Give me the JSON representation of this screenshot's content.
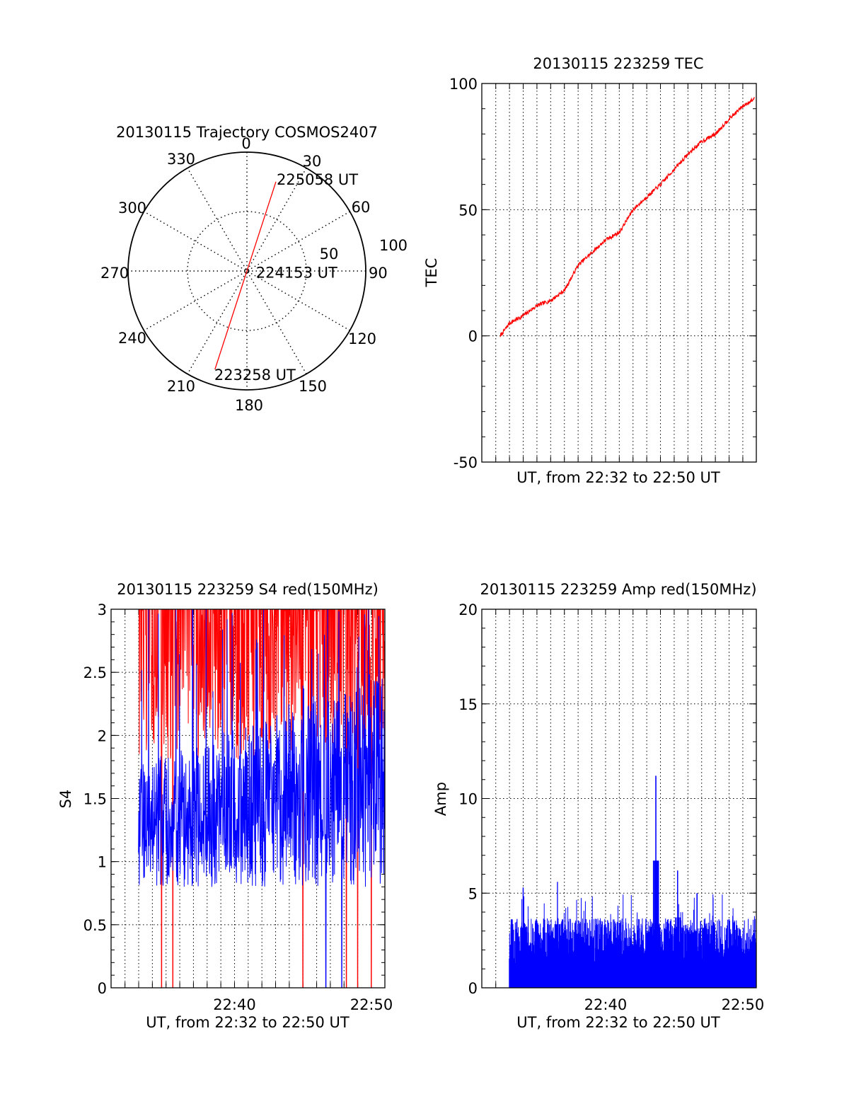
{
  "chart_data": [
    {
      "type": "polar",
      "title": "20130115 Trajectory COSMOS2407",
      "angle_labels": [
        "0",
        "30",
        "60",
        "90",
        "120",
        "150",
        "180",
        "210",
        "240",
        "270",
        "300",
        "330"
      ],
      "radius_labels": [
        "50",
        "100"
      ],
      "rlim": [
        0,
        100
      ],
      "series": [
        {
          "color": "#ff0000",
          "points": [
            {
              "az": 18,
              "r": 79
            },
            {
              "az": 18,
              "r": 0
            },
            {
              "az": 198,
              "r": 87
            }
          ]
        }
      ],
      "annotations": [
        {
          "text": "225058 UT",
          "az": 18,
          "r": 79
        },
        {
          "text": "224153 UT",
          "az": 70,
          "r": 10
        },
        {
          "text": "223258 UT",
          "az": 198,
          "r": 87
        }
      ]
    },
    {
      "type": "line",
      "title": "20130115 223259 TEC",
      "xlabel": "UT, from 22:32 to 22:50 UT",
      "ylabel": "TEC",
      "xlim": [
        "22:30:59",
        "22:50:59"
      ],
      "ylim": [
        -50,
        100
      ],
      "yticks": [
        "-50",
        "0",
        "50",
        "100"
      ],
      "grid": true,
      "series": [
        {
          "color": "#ff0000",
          "x": [
            "22:32:20",
            "22:33:00",
            "22:34:00",
            "22:35:00",
            "22:36:00",
            "22:37:00",
            "22:38:00",
            "22:39:00",
            "22:40:00",
            "22:41:00",
            "22:42:00",
            "22:43:00",
            "22:44:00",
            "22:45:00",
            "22:46:00",
            "22:47:00",
            "22:48:00",
            "22:49:00",
            "22:50:00",
            "22:50:50"
          ],
          "y": [
            0,
            5,
            8,
            12,
            14,
            18,
            28,
            33,
            38,
            41,
            50,
            55,
            60,
            66,
            72,
            77,
            80,
            86,
            91,
            94
          ]
        }
      ]
    },
    {
      "type": "line",
      "title": "20130115 223259 S4 red(150MHz)",
      "xlabel": "UT, from 22:32 to 22:50 UT",
      "ylabel": "S4",
      "xlim": [
        "22:30:59",
        "22:50:59"
      ],
      "ylim": [
        0,
        3
      ],
      "xticks": [
        "22:40",
        "22:50"
      ],
      "yticks": [
        "0",
        "0.5",
        "1",
        "1.5",
        "2",
        "2.5",
        "3"
      ],
      "grid": true,
      "series": [
        {
          "name": "",
          "color": "#ff0000",
          "range": [
            1.8,
            3.0
          ],
          "dropouts": [
            "22:34:40",
            "22:35:30",
            "22:45:00",
            "22:48:10",
            "22:49:00",
            "22:50:00"
          ]
        },
        {
          "name": "",
          "color": "#0000ff",
          "range": [
            0.8,
            2.2
          ],
          "dropouts": [
            "22:46:40",
            "22:47:50"
          ]
        }
      ]
    },
    {
      "type": "line",
      "title": "20130115 223259 Amp red(150MHz)",
      "xlabel": "UT, from 22:32 to 22:50 UT",
      "ylabel": "Amp",
      "xlim": [
        "22:30:59",
        "22:50:59"
      ],
      "ylim": [
        0,
        20
      ],
      "xticks": [
        "22:40",
        "22:50"
      ],
      "yticks": [
        "0",
        "5",
        "10",
        "15",
        "20"
      ],
      "grid": true,
      "series": [
        {
          "color": "#0000ff",
          "baseline": 3.5,
          "spikes": [
            {
              "x": "22:34:00",
              "y": 5.3
            },
            {
              "x": "22:36:30",
              "y": 5.6
            },
            {
              "x": "22:43:40",
              "y": 11.2
            },
            {
              "x": "22:45:15",
              "y": 6.2
            },
            {
              "x": "22:46:40",
              "y": 5.0
            }
          ]
        }
      ]
    }
  ]
}
